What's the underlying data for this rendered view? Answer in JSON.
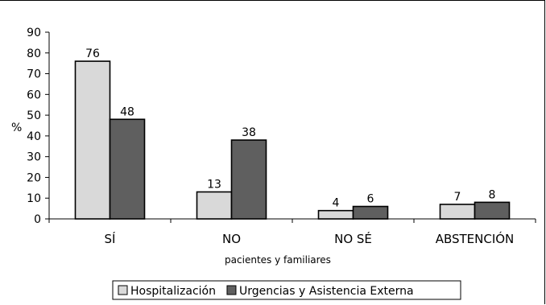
{
  "chart_data": {
    "type": "bar",
    "categories": [
      "SÍ",
      "NO",
      "NO SÉ",
      "ABSTENCIÓN"
    ],
    "series": [
      {
        "name": "Hospitalización",
        "values": [
          76,
          13,
          4,
          7
        ],
        "color": "#d9d9d9"
      },
      {
        "name": "Urgencias y Asistencia Externa",
        "values": [
          48,
          38,
          6,
          8
        ],
        "color": "#5f5f5f"
      }
    ],
    "xlabel": "pacientes y familiares",
    "ylabel": "%",
    "ylim": [
      0,
      90
    ],
    "yticks": [
      0,
      10,
      20,
      30,
      40,
      50,
      60,
      70,
      80,
      90
    ],
    "grid": false,
    "legend": "bottom"
  }
}
